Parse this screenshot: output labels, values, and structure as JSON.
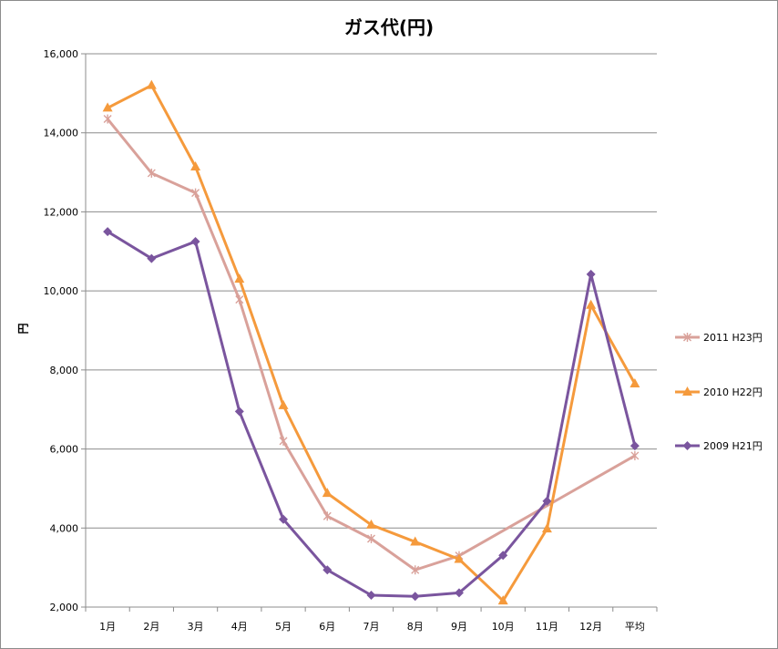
{
  "chart_data": {
    "type": "line",
    "title": "ガス代(円)",
    "xlabel": "",
    "ylabel": "円",
    "ylim": [
      2000,
      16000
    ],
    "yticks": [
      "2,000",
      "4,000",
      "6,000",
      "8,000",
      "10,000",
      "12,000",
      "14,000",
      "16,000"
    ],
    "categories": [
      "1月",
      "2月",
      "3月",
      "4月",
      "5月",
      "6月",
      "7月",
      "8月",
      "9月",
      "10月",
      "11月",
      "12月",
      "平均"
    ],
    "grid": true,
    "legend_position": "right",
    "series": [
      {
        "name": "2011 H23円",
        "color": "#d9a19a",
        "marker": "star",
        "values": [
          14350,
          12980,
          12480,
          9780,
          6200,
          4300,
          3730,
          2940,
          3300,
          null,
          null,
          null,
          5830
        ]
      },
      {
        "name": "2010 H22円",
        "color": "#f59a3c",
        "marker": "triangle",
        "values": [
          14630,
          15200,
          13140,
          10300,
          7100,
          4880,
          4080,
          3650,
          3210,
          2160,
          3980,
          9640,
          7650
        ]
      },
      {
        "name": "2009 H21円",
        "color": "#7a559e",
        "marker": "diamond",
        "values": [
          11500,
          10820,
          11250,
          6950,
          4220,
          2940,
          2300,
          2270,
          2360,
          3310,
          4680,
          10420,
          6080
        ]
      }
    ]
  }
}
